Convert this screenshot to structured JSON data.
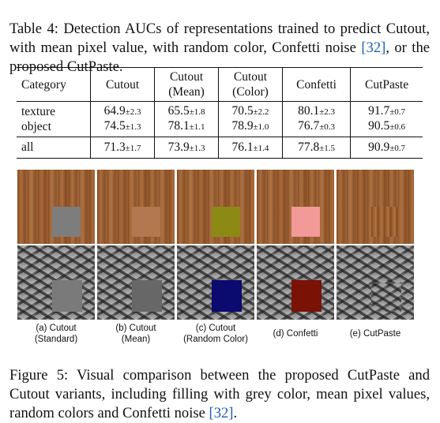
{
  "table_caption": {
    "text": "Table 4: Detection AUCs of representations trained to predict Cutout, with mean pixel value, with random color, Confetti noise ",
    "cite": "[32]",
    "tail": ", or the proposed CutPaste."
  },
  "table": {
    "headers": [
      {
        "line1": "Category",
        "line2": ""
      },
      {
        "line1": "Cutout",
        "line2": ""
      },
      {
        "line1": "Cutout",
        "line2": "(Mean)"
      },
      {
        "line1": "Cutout",
        "line2": "(Color)"
      },
      {
        "line1": "Confetti",
        "line2": ""
      },
      {
        "line1": "CutPaste",
        "line2": ""
      }
    ],
    "rows": [
      {
        "category": "texture",
        "values": [
          {
            "mean": "64.9",
            "std": "±2.3"
          },
          {
            "mean": "65.5",
            "std": "±1.8"
          },
          {
            "mean": "70.5",
            "std": "±2.2"
          },
          {
            "mean": "80.1",
            "std": "±2.3"
          },
          {
            "mean": "91.7",
            "std": "±0.7"
          }
        ]
      },
      {
        "category": "object",
        "values": [
          {
            "mean": "74.5",
            "std": "±1.3"
          },
          {
            "mean": "78.1",
            "std": "±1.1"
          },
          {
            "mean": "78.9",
            "std": "±1.0"
          },
          {
            "mean": "76.7",
            "std": "±0.3"
          },
          {
            "mean": "90.5",
            "std": "±0.6"
          }
        ]
      }
    ],
    "total": {
      "category": "all",
      "values": [
        {
          "mean": "71.3",
          "std": "±1.7"
        },
        {
          "mean": "73.9",
          "std": "±1.3"
        },
        {
          "mean": "76.1",
          "std": "±1.4"
        },
        {
          "mean": "77.8",
          "std": "±1.5"
        },
        {
          "mean": "90.9",
          "std": "±0.7"
        }
      ]
    }
  },
  "figure": {
    "patch_colors": {
      "wood_standard": "#7d7d7d",
      "wood_mean": "#b3784f",
      "wood_color": "#8c8a14",
      "wood_confetti": "#f29a98",
      "mesh_standard": "#7a7a7a",
      "mesh_mean": "#676767",
      "mesh_color": "#0b0a6e",
      "mesh_confetti": "#7a1205"
    },
    "labels": [
      {
        "line1": "(a) Cutout",
        "line2": "(Standard)"
      },
      {
        "line1": "(b) Cutout",
        "line2": "(Mean)"
      },
      {
        "line1": "(c) Cutout",
        "line2": "(Random Color)"
      },
      {
        "line1": "(d) Confetti",
        "line2": ""
      },
      {
        "line1": "(e) CutPaste",
        "line2": ""
      }
    ]
  },
  "figure_caption": {
    "text": "Figure 5: Visual comparison between the proposed CutPaste and Cutout variants, including filling with grey color, mean pixel values, random colors and Confetti noise ",
    "cite": "[32]",
    "tail": "."
  }
}
